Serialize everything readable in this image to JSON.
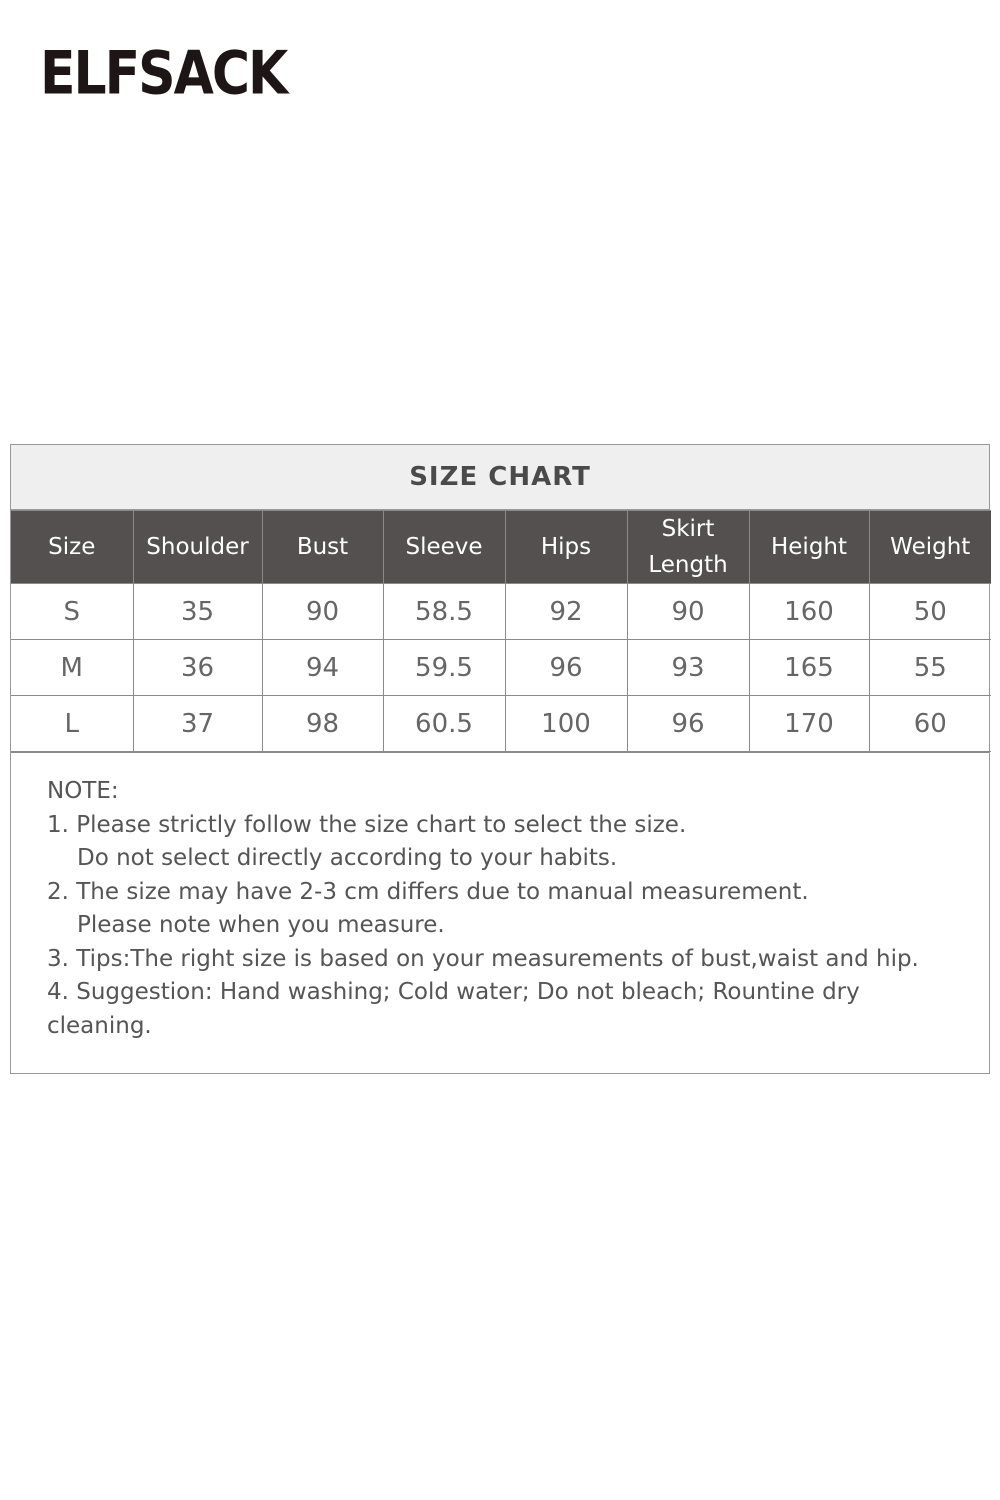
{
  "brand": {
    "logo_text": "ELFSACK"
  },
  "size_chart": {
    "title": "SIZE CHART",
    "columns": [
      "Size",
      "Shoulder",
      "Bust",
      "Sleeve",
      "Hips",
      "Skirt Length",
      "Height",
      "Weight"
    ],
    "rows": [
      [
        "S",
        "35",
        "90",
        "58.5",
        "92",
        "90",
        "160",
        "50"
      ],
      [
        "M",
        "36",
        "94",
        "59.5",
        "96",
        "93",
        "165",
        "55"
      ],
      [
        "L",
        "37",
        "98",
        "60.5",
        "100",
        "96",
        "170",
        "60"
      ]
    ]
  },
  "notes": {
    "heading": "NOTE:",
    "lines": [
      "1. Please strictly follow the size chart to select the size.",
      "Do not select directly according to your habits.",
      "2. The size may have 2-3 cm differs due to manual measurement.",
      "Please note when you measure.",
      "3. Tips:The right size is based on your measurements of bust,waist and hip.",
      "4. Suggestion: Hand washing; Cold water; Do not bleach; Rountine dry cleaning."
    ]
  }
}
